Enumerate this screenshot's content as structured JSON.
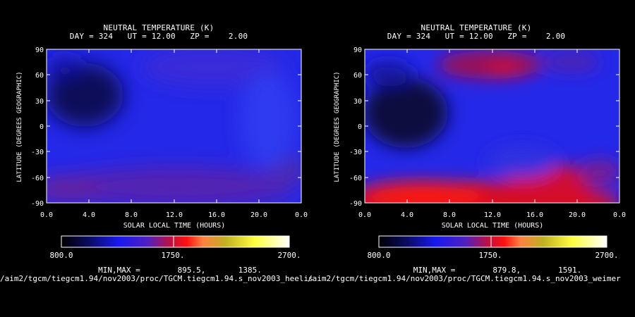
{
  "chart_data": [
    {
      "type": "heatmap",
      "title": "NEUTRAL TEMPERATURE (K)",
      "subtitle": "DAY = 324   UT = 12.00   ZP =    2.00",
      "xlabel": "SOLAR LOCAL TIME (HOURS)",
      "ylabel": "LATITUDE (DEGREES GEOGRAPHIC)",
      "x_ticks": [
        "0.0",
        "4.0",
        "8.0",
        "12.0",
        "16.0",
        "20.0",
        "0.0"
      ],
      "y_ticks": [
        "90",
        "60",
        "30",
        "0",
        "-30",
        "-60",
        "-90"
      ],
      "xlim": [
        0,
        24
      ],
      "ylim": [
        -90,
        90
      ],
      "colorbar": {
        "min": 800,
        "max": 2700,
        "ticks": [
          "800.0",
          "1750.",
          "2700."
        ]
      },
      "min": 895.5,
      "max": 1385,
      "minmax_text": "MIN,MAX =        895.5,       1385.",
      "features": [
        {
          "x": 4,
          "y": 30,
          "value": 900
        },
        {
          "x": 16,
          "y": 70,
          "value": 1050
        },
        {
          "x": 14,
          "y": -70,
          "value": 1250
        },
        {
          "x": 2,
          "y": -70,
          "value": 1200
        },
        {
          "x": 22,
          "y": -45,
          "value": 1150
        }
      ]
    },
    {
      "type": "heatmap",
      "title": "NEUTRAL TEMPERATURE (K)",
      "subtitle": "DAY = 324   UT = 12.00   ZP =    2.00",
      "xlabel": "SOLAR LOCAL TIME (HOURS)",
      "ylabel": "LATITUDE (DEGREES GEOGRAPHIC)",
      "x_ticks": [
        "0.0",
        "4.0",
        "8.0",
        "12.0",
        "16.0",
        "20.0",
        "0.0"
      ],
      "y_ticks": [
        "90",
        "60",
        "30",
        "0",
        "-30",
        "-60",
        "-90"
      ],
      "xlim": [
        0,
        24
      ],
      "ylim": [
        -90,
        90
      ],
      "colorbar": {
        "min": 800,
        "max": 2700,
        "ticks": [
          "800.0",
          "1750.",
          "2700."
        ]
      },
      "min": 879.8,
      "max": 1591,
      "minmax_text": "MIN,MAX =        879.8,        1591.",
      "features": [
        {
          "x": 4,
          "y": 15,
          "value": 880
        },
        {
          "x": 11,
          "y": 66,
          "value": 1550
        },
        {
          "x": 6,
          "y": -78,
          "value": 1500
        },
        {
          "x": 16,
          "y": -68,
          "value": 1591
        },
        {
          "x": 22,
          "y": -55,
          "value": 1300
        }
      ]
    }
  ],
  "paths": [
    "/aim2/tgcm/tiegcm1.94/nov2003/proc/TGCM.tiegcm1.94.s_nov2003_heelis",
    "/aim2/tgcm/tiegcm1.94/nov2003/proc/TGCM.tiegcm1.94.s_nov2003_weimer"
  ],
  "colors": {
    "background": "#000000",
    "field_base": "#2428e8",
    "cold": "#0a0a4a",
    "warm": "#c0143c",
    "hot": "#ff1a10"
  }
}
